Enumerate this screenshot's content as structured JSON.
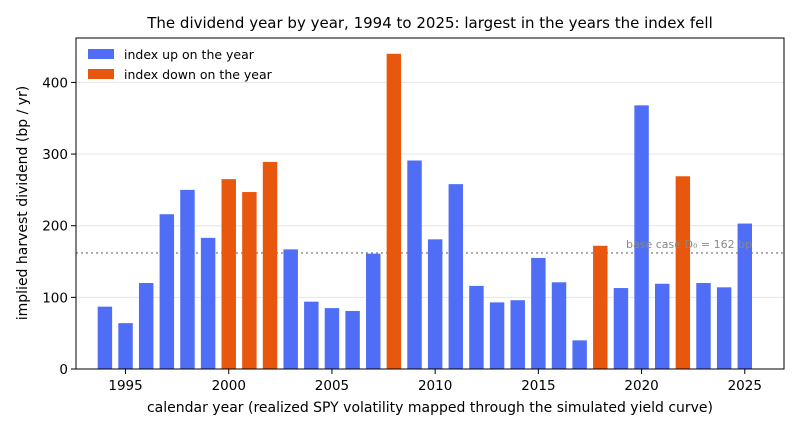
{
  "chart_data": {
    "type": "bar",
    "title": "The dividend year by year, 1994 to 2025: largest in the years the index fell",
    "xlabel": "calendar year (realized SPY volatility mapped through the simulated yield curve)",
    "ylabel": "implied harvest dividend (bp / yr)",
    "xlim": [
      1992.6,
      2026.9
    ],
    "ylim": [
      0,
      462
    ],
    "x_ticks": [
      "1995",
      "2000",
      "2005",
      "2010",
      "2015",
      "2020",
      "2025"
    ],
    "y_ticks": [
      "0",
      "100",
      "200",
      "300",
      "400"
    ],
    "grid": "horizontal",
    "legend_position": "top-left",
    "legend": [
      {
        "label": "index up on the year",
        "color": "#4f6ef5"
      },
      {
        "label": "index down on the year",
        "color": "#e8570e"
      }
    ],
    "reference_line": {
      "value": 162,
      "label": "base case D₀ = 162 bp"
    },
    "years": [
      1994,
      1995,
      1996,
      1997,
      1998,
      1999,
      2000,
      2001,
      2002,
      2003,
      2004,
      2005,
      2006,
      2007,
      2008,
      2009,
      2010,
      2011,
      2012,
      2013,
      2014,
      2015,
      2016,
      2017,
      2018,
      2019,
      2020,
      2021,
      2022,
      2023,
      2024,
      2025
    ],
    "values": [
      87,
      64,
      120,
      216,
      250,
      183,
      265,
      247,
      289,
      167,
      94,
      85,
      81,
      161,
      440,
      291,
      181,
      258,
      116,
      93,
      96,
      155,
      121,
      40,
      172,
      113,
      368,
      119,
      269,
      120,
      114,
      203
    ],
    "index_down": [
      false,
      false,
      false,
      false,
      false,
      false,
      true,
      true,
      true,
      false,
      false,
      false,
      false,
      false,
      true,
      false,
      false,
      false,
      false,
      false,
      false,
      false,
      false,
      false,
      true,
      false,
      false,
      false,
      true,
      false,
      false,
      false
    ],
    "colors": {
      "up": "#4f6ef5",
      "down": "#e8570e"
    }
  }
}
